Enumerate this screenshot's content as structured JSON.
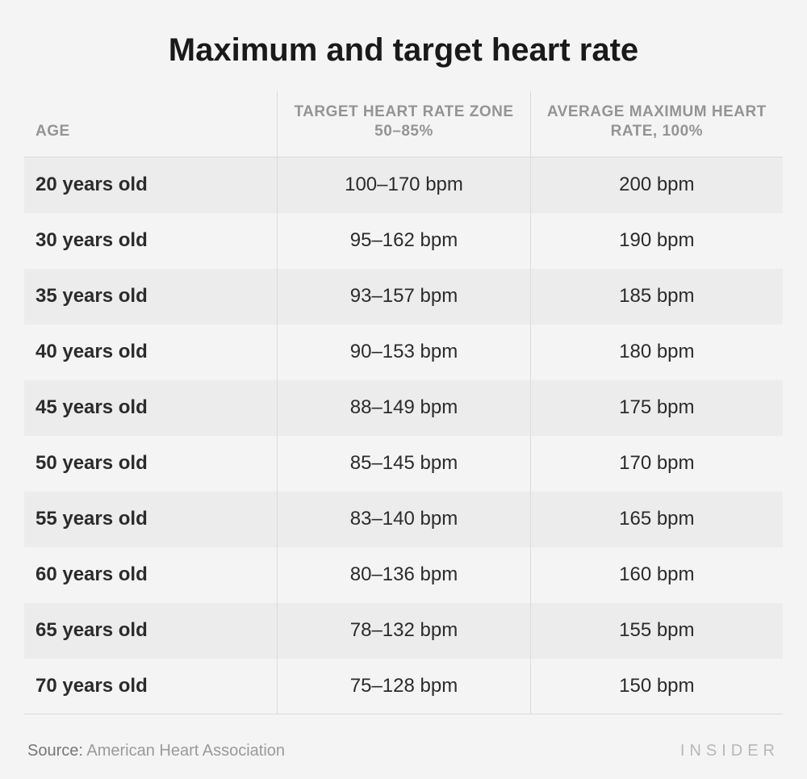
{
  "title": "Maximum and target heart rate",
  "table": {
    "type": "table",
    "background_color": "#f4f4f4",
    "row_shade_color": "#ececec",
    "border_color": "#dadada",
    "title_text_color": "#1a1a1a",
    "header_text_color": "#949494",
    "cell_text_color": "#2b2b2b",
    "title_fontsize": 40,
    "header_fontsize": 19,
    "cell_fontsize": 24,
    "columns": [
      {
        "label": "AGE",
        "align": "left"
      },
      {
        "label": "TARGET HEART RATE ZONE 50–85%",
        "align": "center"
      },
      {
        "label": "AVERAGE MAXIMUM HEART RATE, 100%",
        "align": "center"
      }
    ],
    "rows": [
      [
        "20 years old",
        "100–170 bpm",
        "200 bpm"
      ],
      [
        "30 years old",
        "95–162 bpm",
        "190 bpm"
      ],
      [
        "35 years old",
        "93–157 bpm",
        "185 bpm"
      ],
      [
        "40 years old",
        "90–153 bpm",
        "180 bpm"
      ],
      [
        "45 years old",
        "88–149 bpm",
        "175 bpm"
      ],
      [
        "50 years old",
        "85–145 bpm",
        "170 bpm"
      ],
      [
        "55 years old",
        "83–140 bpm",
        "165 bpm"
      ],
      [
        "60 years old",
        "80–136 bpm",
        "160 bpm"
      ],
      [
        "65 years old",
        "78–132 bpm",
        "155 bpm"
      ],
      [
        "70 years old",
        "75–128 bpm",
        "150 bpm"
      ]
    ]
  },
  "footer": {
    "source_label": "Source:",
    "source_text": "American Heart Association",
    "brand": "INSIDER"
  }
}
